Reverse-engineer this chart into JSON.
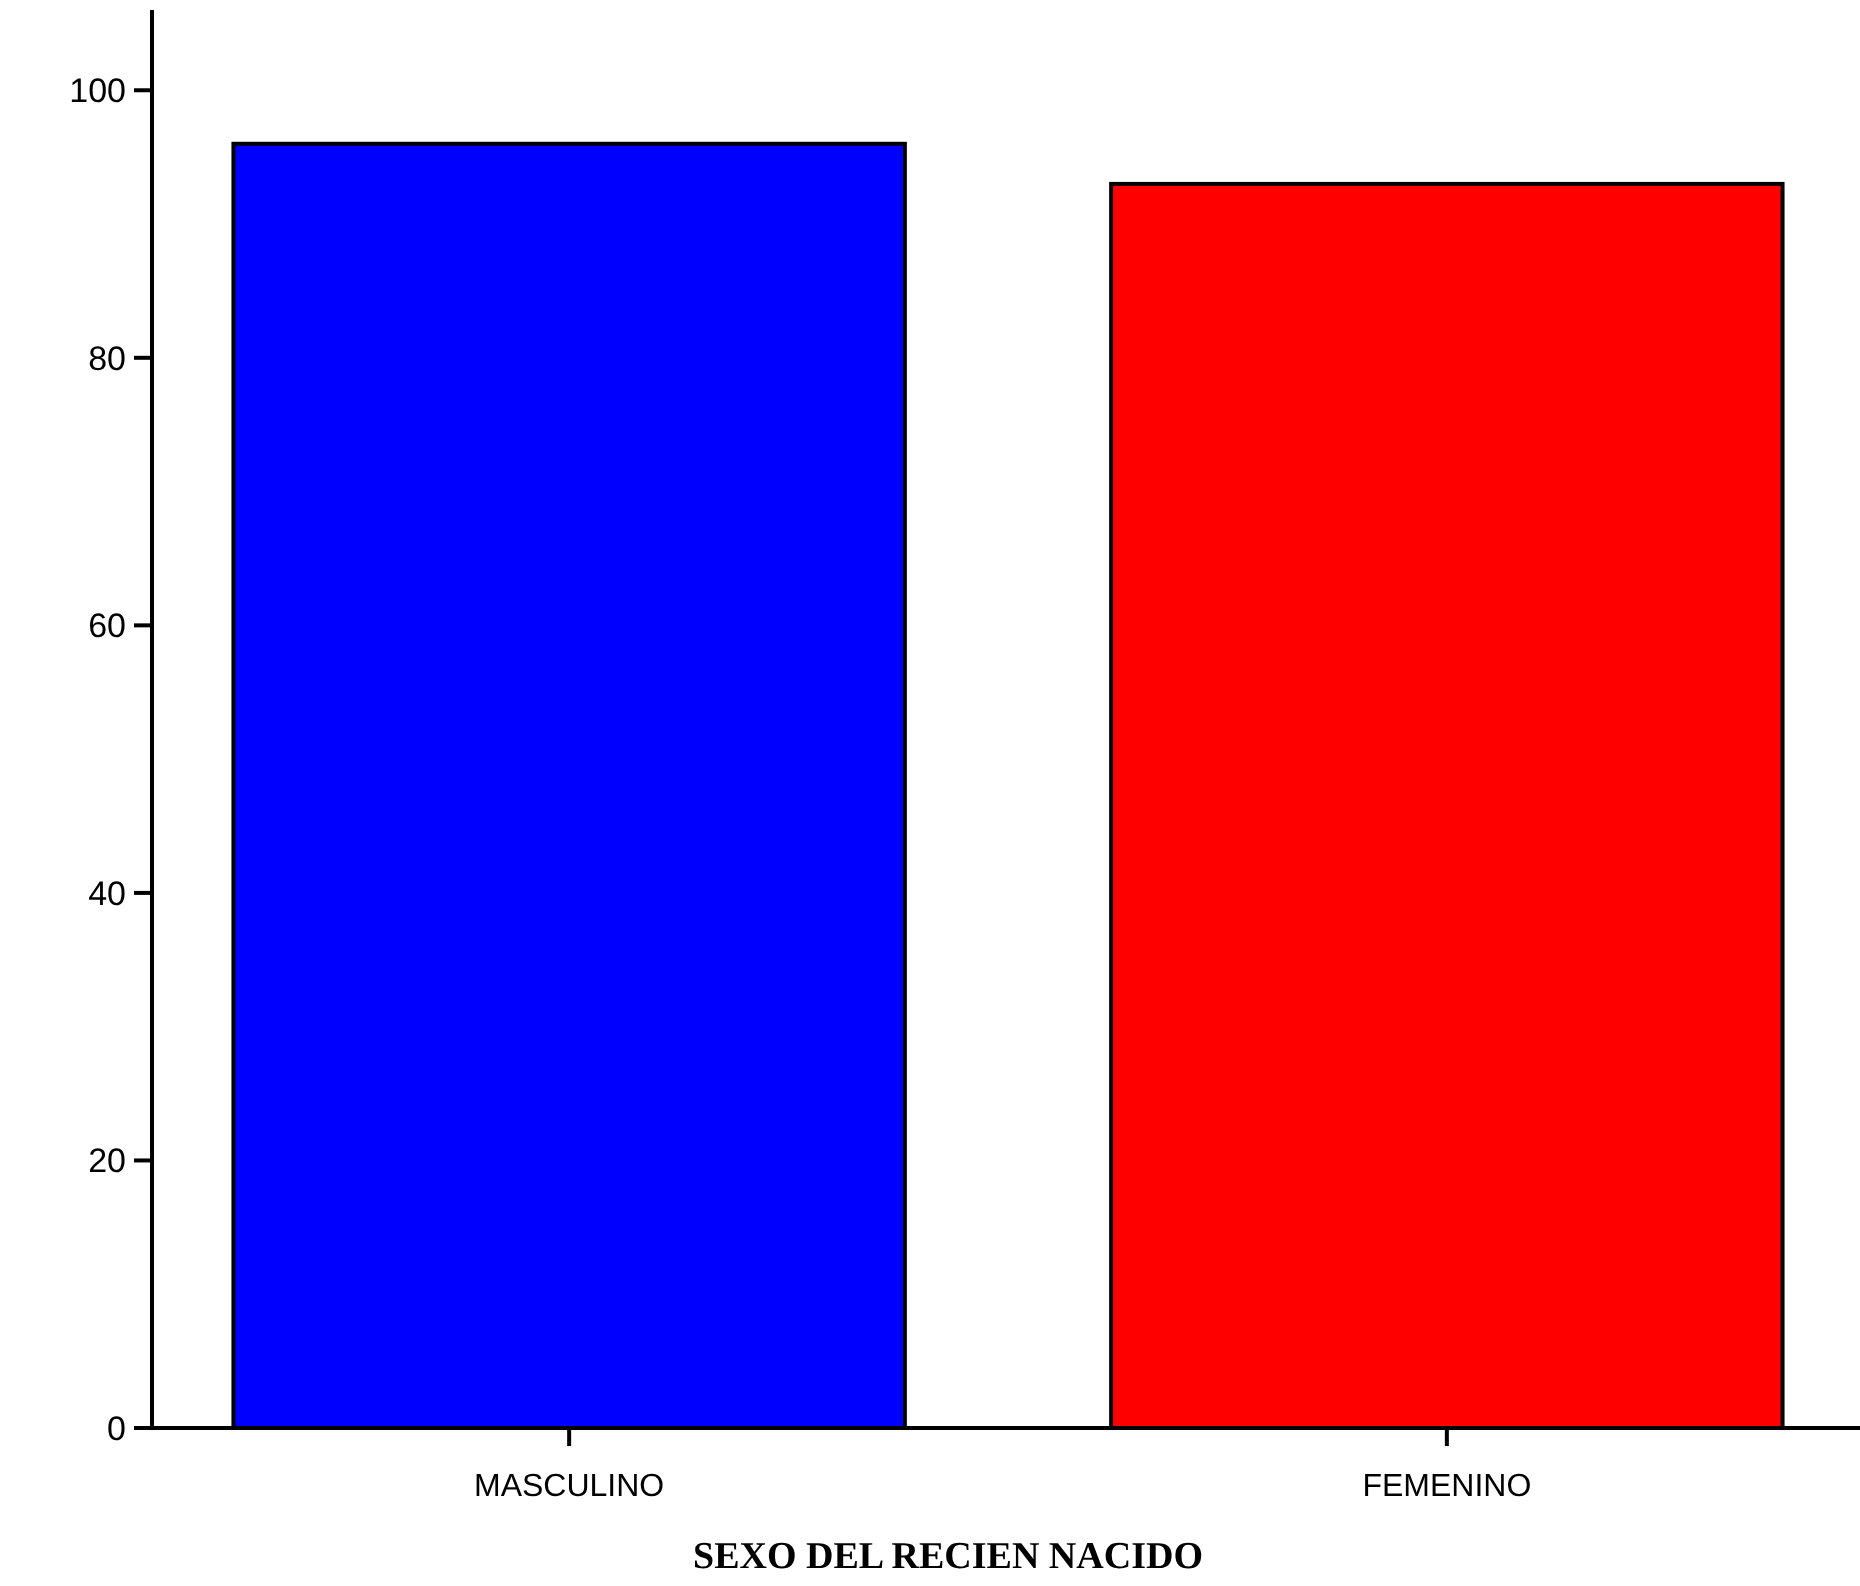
{
  "chart_data": {
    "type": "bar",
    "xlabel": "SEXO DEL RECIEN NACIDO",
    "categories": [
      "MASCULINO",
      "FEMENINO"
    ],
    "values": [
      96,
      93
    ],
    "colors": [
      "#0000ff",
      "#ff0000"
    ],
    "ylim": [
      0,
      106
    ],
    "yticks": [
      0,
      20,
      40,
      60,
      80,
      100
    ],
    "grid": false
  }
}
